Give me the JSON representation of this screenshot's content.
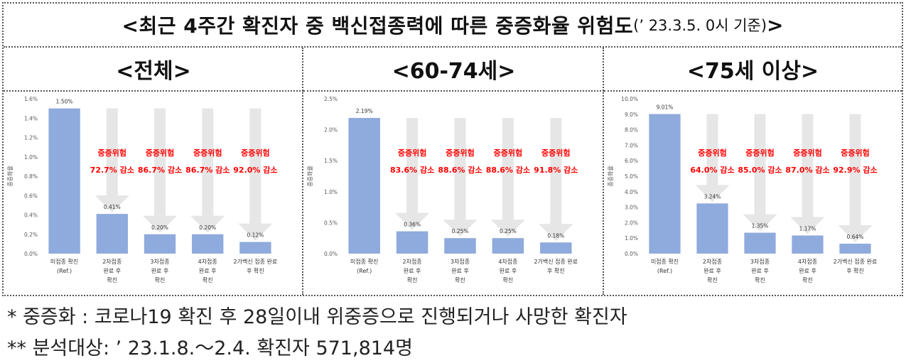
{
  "header": {
    "title_main": "<최근 4주간 확진자 중 백신접종력에 따른 중증화율 위험도",
    "title_date": "(’ 23.3.5. 0시 기준)",
    "title_close": ">"
  },
  "columns": [
    {
      "label": "<전체>"
    },
    {
      "label": "<60-74세>"
    },
    {
      "label": "<75세 이상>"
    }
  ],
  "colors": {
    "bar": "#8faadc",
    "arrow": "#e6e6e6",
    "risk_text": "#ff0000",
    "axis_text": "#595959"
  },
  "risk_label": "중증위험",
  "chart_data": [
    {
      "type": "bar",
      "ylabel": "중증화율",
      "ylim": [
        0,
        1.6
      ],
      "yticks": [
        "0.0%",
        "0.2%",
        "0.4%",
        "0.6%",
        "0.8%",
        "1.0%",
        "1.2%",
        "1.4%",
        "1.6%"
      ],
      "categories": [
        [
          "미접종 확진",
          "(Ref.)"
        ],
        [
          "2차접종",
          "완료 후",
          "확진"
        ],
        [
          "3차접종",
          "완료 후",
          "확진"
        ],
        [
          "4차접종",
          "완료 후",
          "확진"
        ],
        [
          "2가백신 접종 완료",
          "후 확진"
        ]
      ],
      "values": [
        1.5,
        0.41,
        0.2,
        0.2,
        0.12
      ],
      "value_labels": [
        "1.50%",
        "0.41%",
        "0.20%",
        "0.20%",
        "0.12%"
      ],
      "reductions": [
        "72.7% 감소",
        "86.7% 감소",
        "86.7% 감소",
        "92.0% 감소"
      ]
    },
    {
      "type": "bar",
      "ylabel": "중증화율",
      "ylim": [
        0,
        2.5
      ],
      "yticks": [
        "0.0%",
        "0.5%",
        "1.0%",
        "1.5%",
        "2.0%",
        "2.5%"
      ],
      "categories": [
        [
          "미접종 확진",
          "(Ref.)"
        ],
        [
          "2차접종",
          "완료 후",
          "확진"
        ],
        [
          "3차접종",
          "완료 후",
          "확진"
        ],
        [
          "4차접종",
          "완료 후",
          "확진"
        ],
        [
          "2가백신 접종 완료",
          "후 확진"
        ]
      ],
      "values": [
        2.19,
        0.36,
        0.25,
        0.25,
        0.18
      ],
      "value_labels": [
        "2.19%",
        "0.36%",
        "0.25%",
        "0.25%",
        "0.18%"
      ],
      "reductions": [
        "83.6% 감소",
        "88.6% 감소",
        "88.6% 감소",
        "91.8% 감소"
      ]
    },
    {
      "type": "bar",
      "ylabel": "중증화율",
      "ylim": [
        0,
        10
      ],
      "yticks": [
        "0.0%",
        "1.0%",
        "2.0%",
        "3.0%",
        "4.0%",
        "5.0%",
        "6.0%",
        "7.0%",
        "8.0%",
        "9.0%",
        "10.0%"
      ],
      "categories": [
        [
          "미접종 확진",
          "(Ref.)"
        ],
        [
          "2차접종",
          "완료 후",
          "확진"
        ],
        [
          "3차접종",
          "완료 후",
          "확진"
        ],
        [
          "4차접종",
          "완료 후",
          "확진"
        ],
        [
          "2가백신 접종 완료",
          "후 확진"
        ]
      ],
      "values": [
        9.01,
        3.24,
        1.35,
        1.17,
        0.64
      ],
      "value_labels": [
        "9.01%",
        "3.24%",
        "1.35%",
        "1.17%",
        "0.64%"
      ],
      "reductions": [
        "64.0% 감소",
        "85.0% 감소",
        "87.0% 감소",
        "92.9% 감소"
      ]
    }
  ],
  "footnotes": [
    "* 중증화 : 코로나19 확진 후 28일이내 위중증으로 진행되거나 사망한 확진자",
    "** 분석대상: ’ 23.1.8.～2.4. 확진자 571,814명"
  ]
}
